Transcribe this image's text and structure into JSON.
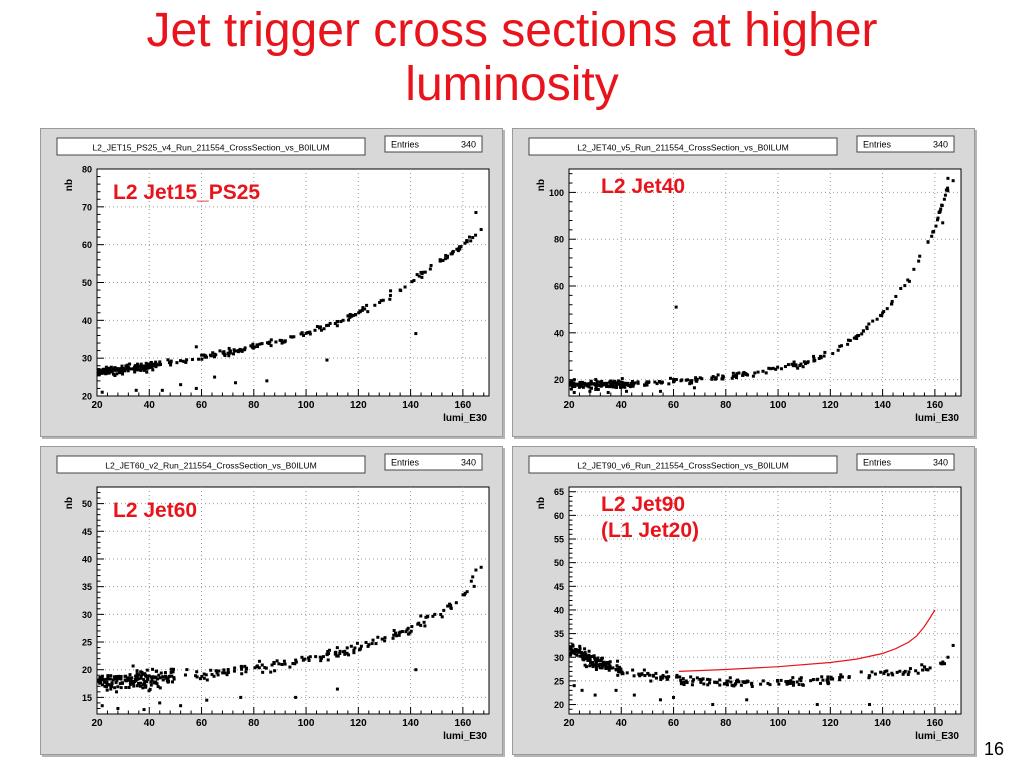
{
  "slide": {
    "title_line1": "Jet trigger cross sections at higher",
    "title_line2": "luminosity",
    "page_number": "16"
  },
  "colors": {
    "title": "#e8131b",
    "annotation": "#e8131b",
    "marker": "#000000",
    "fit": "#e8131b",
    "frame_bg": "#d8d8d8",
    "plot_bg": "#ffffff"
  },
  "chart_data": [
    {
      "type": "scatter",
      "hist_title": "L2_JET15_PS25_v4_Run_211554_CrossSection_vs_B0ILUM",
      "stats": {
        "label": "Entries",
        "value": "340"
      },
      "annotation": [
        "L2 Jet15_PS25"
      ],
      "xlabel": "lumi_E30",
      "ylabel": "nb",
      "xlim": [
        20,
        170
      ],
      "ylim": [
        20,
        80
      ],
      "xticks": [
        20,
        40,
        60,
        80,
        100,
        120,
        140,
        160
      ],
      "yticks": [
        20,
        30,
        40,
        50,
        60,
        70,
        80
      ],
      "grid": true,
      "trend": {
        "x": [
          20,
          30,
          40,
          50,
          60,
          70,
          80,
          90,
          100,
          110,
          120,
          130,
          140,
          150,
          160,
          165
        ],
        "y": [
          26.5,
          27,
          28,
          29,
          30.2,
          31.5,
          33,
          34.5,
          36.5,
          39,
          42,
          45.5,
          50,
          55,
          60,
          63
        ],
        "spread": 0.9
      },
      "dense": {
        "x_from": 20,
        "x_to": 45,
        "y_center": 27,
        "spread": 1.4,
        "n": 80
      },
      "outliers": [
        [
          22,
          21
        ],
        [
          25,
          20.5
        ],
        [
          30,
          20.5
        ],
        [
          35,
          21.5
        ],
        [
          45,
          21.5
        ],
        [
          52,
          23
        ],
        [
          58,
          22
        ],
        [
          65,
          25
        ],
        [
          73,
          23.5
        ],
        [
          85,
          24
        ],
        [
          58,
          33
        ],
        [
          108,
          29.5
        ],
        [
          142,
          36.5
        ],
        [
          163,
          61
        ],
        [
          167,
          64
        ],
        [
          165,
          68.5
        ]
      ]
    },
    {
      "type": "scatter",
      "hist_title": "L2_JET40_v5_Run_211554_CrossSection_vs_B0ILUM",
      "stats": {
        "label": "Entries",
        "value": "340"
      },
      "annotation": [
        "L2 Jet40"
      ],
      "xlabel": "lumi_E30",
      "ylabel": "nb",
      "xlim": [
        20,
        170
      ],
      "ylim": [
        13,
        110
      ],
      "xticks": [
        20,
        40,
        60,
        80,
        100,
        120,
        140,
        160
      ],
      "yticks": [
        20,
        40,
        60,
        80,
        100
      ],
      "grid": true,
      "trend": {
        "x": [
          20,
          30,
          40,
          50,
          60,
          70,
          80,
          90,
          100,
          110,
          120,
          130,
          140,
          150,
          160,
          165
        ],
        "y": [
          18,
          18,
          18,
          18.5,
          19.5,
          20,
          21,
          22.5,
          24.5,
          27,
          31,
          38,
          48,
          63,
          85,
          102
        ],
        "spread": 1.3
      },
      "dense": {
        "x_from": 20,
        "x_to": 45,
        "y_center": 18,
        "spread": 2.2,
        "n": 85
      },
      "outliers": [
        [
          22,
          14.5
        ],
        [
          28,
          15
        ],
        [
          35,
          14.5
        ],
        [
          42,
          15
        ],
        [
          55,
          15
        ],
        [
          48,
          14
        ],
        [
          61,
          51
        ],
        [
          68,
          16.5
        ],
        [
          140,
          48.5
        ],
        [
          163,
          87
        ],
        [
          165,
          106
        ],
        [
          167,
          105
        ]
      ]
    },
    {
      "type": "scatter",
      "hist_title": "L2_JET60_v2_Run_211554_CrossSection_vs_B0ILUM",
      "stats": {
        "label": "Entries",
        "value": "340"
      },
      "annotation": [
        "L2 Jet60"
      ],
      "xlabel": "lumi_E30",
      "ylabel": "nb",
      "xlim": [
        20,
        170
      ],
      "ylim": [
        12,
        53
      ],
      "xticks": [
        20,
        40,
        60,
        80,
        100,
        120,
        140,
        160
      ],
      "yticks": [
        15,
        20,
        25,
        30,
        35,
        40,
        45,
        50
      ],
      "grid": true,
      "trend": {
        "x": [
          20,
          30,
          40,
          50,
          60,
          70,
          80,
          90,
          100,
          110,
          120,
          130,
          140,
          150,
          160,
          165
        ],
        "y": [
          18,
          18,
          18.5,
          18.8,
          19.2,
          19.8,
          20.3,
          21,
          21.8,
          22.8,
          24,
          25.6,
          27.7,
          30,
          33,
          36
        ],
        "spread": 1.1
      },
      "dense": {
        "x_from": 20,
        "x_to": 50,
        "y_center": 18,
        "spread": 2.0,
        "n": 95
      },
      "outliers": [
        [
          22,
          13.5
        ],
        [
          28,
          13
        ],
        [
          38,
          12.8
        ],
        [
          44,
          14
        ],
        [
          52,
          13.5
        ],
        [
          62,
          14.5
        ],
        [
          75,
          15
        ],
        [
          96,
          15
        ],
        [
          112,
          16.5
        ],
        [
          142,
          20
        ],
        [
          165,
          38
        ],
        [
          167,
          38.5
        ]
      ]
    },
    {
      "type": "scatter",
      "hist_title": "L2_JET90_v6_Run_211554_CrossSection_vs_B0ILUM",
      "stats": {
        "label": "Entries",
        "value": "340"
      },
      "annotation": [
        "L2 Jet90",
        "(L1 Jet20)"
      ],
      "xlabel": "lumi_E30",
      "ylabel": "nb",
      "xlim": [
        20,
        170
      ],
      "ylim": [
        18,
        66
      ],
      "xticks": [
        20,
        40,
        60,
        80,
        100,
        120,
        140,
        160
      ],
      "yticks": [
        20,
        25,
        30,
        35,
        40,
        45,
        50,
        55,
        60,
        65
      ],
      "grid": true,
      "trend": {
        "x": [
          20,
          25,
          30,
          35,
          40,
          50,
          60,
          70,
          80,
          90,
          100,
          110,
          120,
          130,
          140,
          150,
          160,
          165
        ],
        "y": [
          32,
          30.5,
          29,
          28,
          27,
          26.2,
          25.5,
          25,
          24.7,
          24.6,
          24.7,
          25,
          25.4,
          26,
          26.5,
          27,
          28,
          29
        ],
        "spread": 1.0
      },
      "dense": {
        "x_from": 20,
        "x_to": 40,
        "y_center": 30,
        "spread": 2.2,
        "n": 70
      },
      "fit": {
        "x": [
          62,
          80,
          100,
          120,
          130,
          140,
          145,
          150,
          153,
          156,
          158,
          160
        ],
        "y": [
          27,
          27.4,
          28,
          28.9,
          29.6,
          30.8,
          31.8,
          33.2,
          34.5,
          36.5,
          38.2,
          40
        ]
      },
      "outliers": [
        [
          22,
          24
        ],
        [
          25,
          23
        ],
        [
          30,
          22
        ],
        [
          38,
          23
        ],
        [
          45,
          22
        ],
        [
          55,
          21
        ],
        [
          60,
          21.5
        ],
        [
          75,
          20
        ],
        [
          88,
          21
        ],
        [
          115,
          20
        ],
        [
          135,
          20
        ],
        [
          165,
          30
        ],
        [
          167,
          32.5
        ]
      ]
    }
  ]
}
